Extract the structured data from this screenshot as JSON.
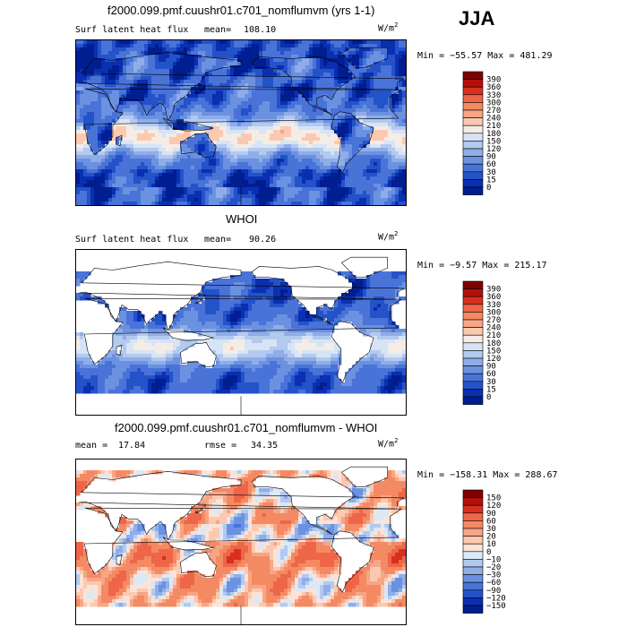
{
  "season": "JJA",
  "panels": [
    {
      "title": "f2000.099.pmf.cuushr01.c701_nomflumvm (yrs 1-1)",
      "left_label": "Surf latent heat flux",
      "stat_label": "mean=",
      "stat_value": "108.10",
      "units": "W/m",
      "units_exp": "2",
      "minmax": "Min = −55.57 Max = 481.29",
      "colorbar_levels": [
        "390",
        "360",
        "330",
        "300",
        "270",
        "240",
        "210",
        "180",
        "150",
        "120",
        "90",
        "60",
        "30",
        "15",
        "0"
      ],
      "colorbar_colors": [
        "#7f0000",
        "#b30f0b",
        "#d7301f",
        "#ef6548",
        "#f38a64",
        "#f7a586",
        "#fbc9b0",
        "#f5ece6",
        "#d7e4f5",
        "#b3c9ef",
        "#8fade8",
        "#6b91e1",
        "#4a73d8",
        "#2452c9",
        "#0a2fb0",
        "#001e8f"
      ],
      "field": "flux"
    },
    {
      "title": "WHOI",
      "left_label": "Surf latent heat flux",
      "stat_label": "mean=",
      "stat_value": "90.26",
      "units": "W/m",
      "units_exp": "2",
      "minmax": "Min =  −9.57 Max = 215.17",
      "colorbar_levels": [
        "390",
        "360",
        "330",
        "300",
        "270",
        "240",
        "210",
        "180",
        "150",
        "120",
        "90",
        "60",
        "30",
        "15",
        "0"
      ],
      "colorbar_colors": [
        "#7f0000",
        "#b30f0b",
        "#d7301f",
        "#ef6548",
        "#f38a64",
        "#f7a586",
        "#fbc9b0",
        "#f5ece6",
        "#d7e4f5",
        "#b3c9ef",
        "#8fade8",
        "#6b91e1",
        "#4a73d8",
        "#2452c9",
        "#0a2fb0",
        "#001e8f"
      ],
      "field": "obs"
    },
    {
      "title": "f2000.099.pmf.cuushr01.c701_nomflumvm - WHOI",
      "left_label": "mean =",
      "left_value": "17.84",
      "stat_label": "rmse =",
      "stat_value": "34.35",
      "units": "W/m",
      "units_exp": "2",
      "minmax": "Min = −158.31 Max = 288.67",
      "colorbar_levels": [
        "150",
        "120",
        "90",
        "60",
        "30",
        "20",
        "10",
        "0",
        "−10",
        "−20",
        "−30",
        "−60",
        "−90",
        "−120",
        "−150"
      ],
      "colorbar_colors": [
        "#7f0000",
        "#b30f0b",
        "#d7301f",
        "#ef6548",
        "#f38a64",
        "#f7a586",
        "#fbc9b0",
        "#fde3d6",
        "#dbe8f7",
        "#b3c9ef",
        "#8fade8",
        "#6b91e1",
        "#4a73d8",
        "#2452c9",
        "#0a2fb0",
        "#001e8f"
      ],
      "field": "diff"
    }
  ]
}
